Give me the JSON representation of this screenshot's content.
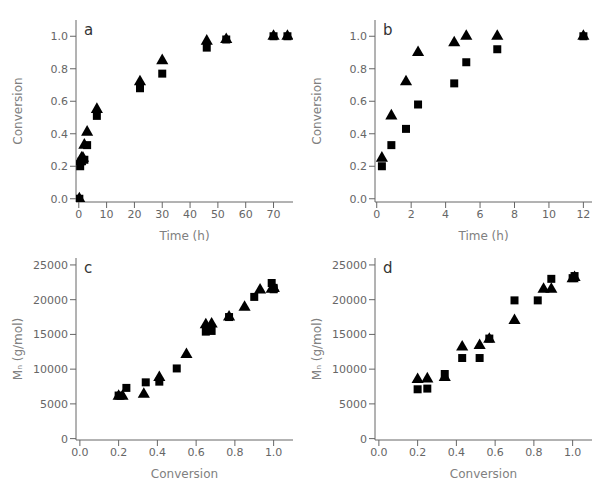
{
  "chart_data": [
    {
      "type": "scatter",
      "annotation": "a",
      "x_label": "Time (h)",
      "y_label": "Conversion",
      "xlim": [
        -1,
        77
      ],
      "ylim": [
        -0.02,
        1.1
      ],
      "xticks": [
        0,
        10,
        20,
        30,
        40,
        50,
        60,
        70
      ],
      "yticks": [
        {
          "value": 0.0,
          "label": "0.0"
        },
        0.2,
        0.4,
        0.6,
        0.8,
        {
          "value": 1.0,
          "label": "1.0"
        }
      ],
      "grid": false,
      "series": [
        {
          "marker": "triangle",
          "color": "black",
          "x": [
            0.2,
            0.5,
            1.0,
            1.5,
            2.0,
            3.0,
            6.5,
            22,
            30,
            46,
            53,
            70,
            75
          ],
          "values": [
            0.0,
            0.23,
            0.25,
            0.25,
            0.33,
            0.41,
            0.55,
            0.72,
            0.85,
            0.97,
            0.98,
            1.0,
            1.0
          ]
        },
        {
          "marker": "square",
          "color": "black",
          "x": [
            0.2,
            0.5,
            1.0,
            2.0,
            3.0,
            6.5,
            22,
            30,
            46,
            53,
            70,
            75
          ],
          "values": [
            0.0,
            0.2,
            0.23,
            0.24,
            0.33,
            0.51,
            0.68,
            0.77,
            0.93,
            0.98,
            1.0,
            1.0
          ]
        }
      ]
    },
    {
      "type": "scatter",
      "annotation": "b",
      "x_label": "Time (h)",
      "y_label": "Conversion",
      "xlim": [
        -0.1,
        12.5
      ],
      "ylim": [
        -0.02,
        1.1
      ],
      "xticks": [
        0,
        2,
        4,
        6,
        8,
        10,
        12
      ],
      "yticks": [
        {
          "value": 0.0,
          "label": "0.0"
        },
        0.2,
        0.4,
        0.6,
        0.8,
        {
          "value": 1.0,
          "label": "1.0"
        }
      ],
      "grid": false,
      "series": [
        {
          "marker": "triangle",
          "color": "black",
          "x": [
            0.3,
            0.85,
            1.7,
            2.4,
            4.5,
            5.2,
            7.0,
            12.0
          ],
          "values": [
            0.25,
            0.51,
            0.72,
            0.9,
            0.96,
            1.0,
            1.0,
            1.0
          ]
        },
        {
          "marker": "square",
          "color": "black",
          "x": [
            0.3,
            0.85,
            1.7,
            2.4,
            4.5,
            5.2,
            7.0,
            12.0
          ],
          "values": [
            0.2,
            0.33,
            0.43,
            0.58,
            0.71,
            0.84,
            0.92,
            1.0
          ]
        }
      ]
    },
    {
      "type": "scatter",
      "annotation": "c",
      "x_label": "Conversion",
      "y_label": "Mₙ (g/mol)",
      "xlim": [
        -0.02,
        1.1
      ],
      "ylim": [
        -200,
        26000
      ],
      "xticks": [
        {
          "value": 0.0,
          "label": "0.0"
        },
        0.2,
        0.4,
        0.6,
        0.8,
        {
          "value": 1.0,
          "label": "1.0"
        }
      ],
      "yticks": [
        0,
        5000,
        10000,
        15000,
        20000,
        25000
      ],
      "grid": false,
      "series": [
        {
          "marker": "triangle",
          "color": "black",
          "x": [
            0.2,
            0.22,
            0.33,
            0.41,
            0.55,
            0.65,
            0.68,
            0.77,
            0.85,
            0.93,
            0.99,
            1.0,
            1.0
          ],
          "values": [
            6100,
            6100,
            6400,
            8800,
            12100,
            16400,
            16500,
            17500,
            18900,
            21400,
            21500,
            21600,
            21700
          ]
        },
        {
          "marker": "square",
          "color": "black",
          "x": [
            0.2,
            0.24,
            0.34,
            0.41,
            0.5,
            0.65,
            0.68,
            0.77,
            0.9,
            0.99,
            1.0,
            1.0
          ],
          "values": [
            6200,
            7300,
            8100,
            8200,
            10100,
            15400,
            15500,
            17500,
            20400,
            22400,
            21500,
            21700
          ]
        }
      ]
    },
    {
      "type": "scatter",
      "annotation": "d",
      "x_label": "Conversion",
      "y_label": "Mₙ (g/mol)",
      "xlim": [
        -0.02,
        1.1
      ],
      "ylim": [
        -200,
        26000
      ],
      "xticks": [
        {
          "value": 0.0,
          "label": "0.0"
        },
        0.2,
        0.4,
        0.6,
        0.8,
        {
          "value": 1.0,
          "label": "1.0"
        }
      ],
      "yticks": [
        0,
        5000,
        10000,
        15000,
        20000,
        25000
      ],
      "grid": false,
      "series": [
        {
          "marker": "triangle",
          "color": "black",
          "x": [
            0.2,
            0.25,
            0.34,
            0.43,
            0.52,
            0.57,
            0.7,
            0.85,
            0.89,
            1.0,
            1.01
          ],
          "values": [
            8500,
            8600,
            8800,
            13200,
            13400,
            14300,
            17000,
            21500,
            21500,
            23000,
            23200
          ]
        },
        {
          "marker": "square",
          "color": "black",
          "x": [
            0.2,
            0.25,
            0.34,
            0.43,
            0.52,
            0.57,
            0.7,
            0.82,
            0.89,
            1.0,
            1.01
          ],
          "values": [
            7100,
            7200,
            9300,
            11600,
            11600,
            14400,
            19900,
            19900,
            23000,
            23100,
            23400
          ]
        }
      ]
    }
  ]
}
